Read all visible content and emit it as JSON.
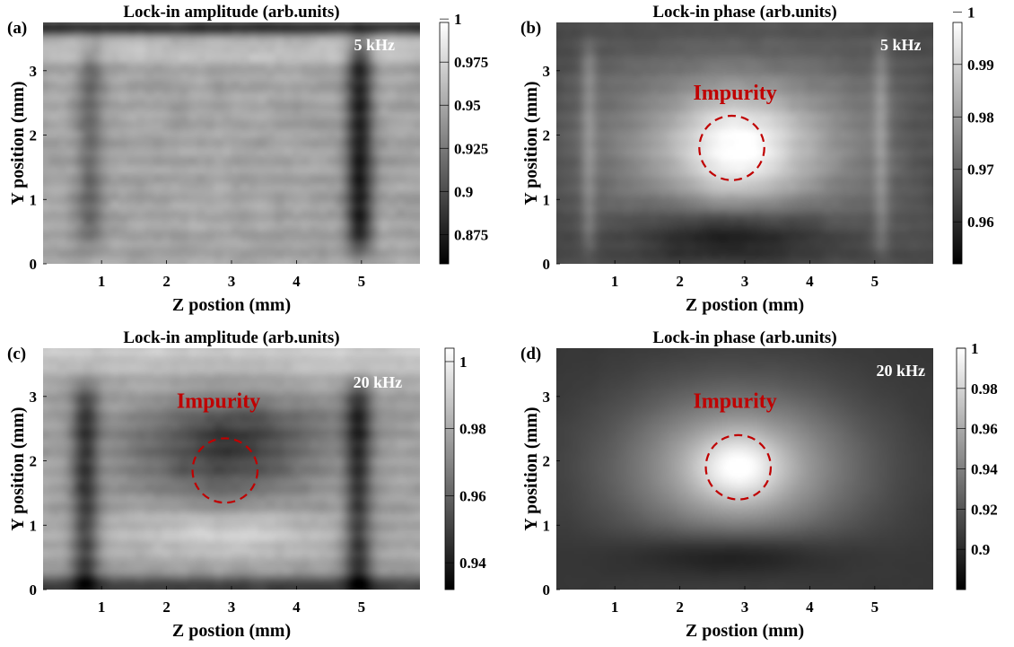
{
  "chart_data": [
    {
      "panel": "(a)",
      "type": "heatmap",
      "title": "Lock-in amplitude (arb.units)",
      "xlabel": "Z postion (mm)",
      "ylabel": "Y position (mm)",
      "xlim": [
        0.1,
        5.9
      ],
      "ylim": [
        0,
        3.75
      ],
      "xticks": [
        1,
        2,
        3,
        4,
        5
      ],
      "yticks": [
        0,
        1,
        2,
        3
      ],
      "colormap": "gray",
      "clim": [
        0.858,
        0.998
      ],
      "colorbar_ticks": [
        "0.875",
        "0.9",
        "0.925",
        "0.95",
        "0.975",
        "1"
      ],
      "colorbar_values": [
        0.875,
        0.9,
        0.925,
        0.95,
        0.975,
        1
      ],
      "annotations": [
        {
          "text": "5 kHz",
          "x": 5.2,
          "y": 3.32,
          "color": "#ffffff"
        }
      ],
      "impurity": null,
      "field": {
        "base": 0.948,
        "features": [
          {
            "kind": "vband",
            "x0": 0.82,
            "sx": 0.15,
            "y0": 0.35,
            "y1": 3.35,
            "amp": -0.032
          },
          {
            "kind": "vband",
            "x0": 4.97,
            "sx": 0.15,
            "y0": 0.25,
            "y1": 3.4,
            "amp": -0.07
          },
          {
            "kind": "hband",
            "y0": 3.68,
            "sy": 0.08,
            "amp": -0.06
          },
          {
            "kind": "hband",
            "y0": 3.3,
            "sy": 0.12,
            "amp": 0.018
          }
        ],
        "noise": 0.01,
        "stripes": 0.005
      }
    },
    {
      "panel": "(b)",
      "type": "heatmap",
      "title": "Lock-in phase (arb.units)",
      "xlabel": "Z postion (mm)",
      "ylabel": "Y position (mm)",
      "xlim": [
        0.1,
        5.9
      ],
      "ylim": [
        0,
        3.75
      ],
      "xticks": [
        1,
        2,
        3,
        4,
        5
      ],
      "yticks": [
        0,
        1,
        2,
        3
      ],
      "colormap": "gray",
      "clim": [
        0.952,
        0.998
      ],
      "colorbar_ticks": [
        "0.96",
        "0.97",
        "0.98",
        "0.99",
        "1"
      ],
      "colorbar_values": [
        0.96,
        0.97,
        0.98,
        0.99,
        1
      ],
      "annotations": [
        {
          "text": "5 kHz",
          "x": 5.4,
          "y": 3.32,
          "color": "#ffffff"
        },
        {
          "text": "Impurity",
          "x": 2.85,
          "y": 2.55,
          "color": "#c00000"
        }
      ],
      "impurity": {
        "x": 2.8,
        "y": 1.8,
        "r": 0.5
      },
      "field": {
        "base": 0.965,
        "features": [
          {
            "kind": "rect",
            "x0": 0.55,
            "x1": 5.3,
            "y0": 0.8,
            "y1": 3.05,
            "s": 0.35,
            "amp": 0.012
          },
          {
            "kind": "blob",
            "x0": 2.9,
            "y0": 1.8,
            "sx": 0.75,
            "sy": 0.62,
            "amp": 0.023
          },
          {
            "kind": "blob",
            "x0": 2.8,
            "y0": 0.45,
            "sx": 1.0,
            "sy": 0.3,
            "amp": -0.012
          },
          {
            "kind": "vband",
            "x0": 0.6,
            "sx": 0.09,
            "y0": 0.2,
            "y1": 3.4,
            "amp": 0.007
          },
          {
            "kind": "vband",
            "x0": 5.1,
            "sx": 0.09,
            "y0": 0.2,
            "y1": 3.4,
            "amp": 0.007
          }
        ],
        "noise": 0.0015,
        "stripes": 0.0008
      }
    },
    {
      "panel": "(c)",
      "type": "heatmap",
      "title": "Lock-in amplitude (arb.units)",
      "xlabel": "Z postion (mm)",
      "ylabel": "Y position (mm)",
      "xlim": [
        0.1,
        5.9
      ],
      "ylim": [
        0,
        3.75
      ],
      "xticks": [
        1,
        2,
        3,
        4,
        5
      ],
      "yticks": [
        0,
        1,
        2,
        3
      ],
      "colormap": "gray",
      "clim": [
        0.932,
        1.004
      ],
      "colorbar_ticks": [
        "0.94",
        "0.96",
        "0.98",
        "1"
      ],
      "colorbar_values": [
        0.94,
        0.96,
        0.98,
        1
      ],
      "annotations": [
        {
          "text": "20 kHz",
          "x": 5.25,
          "y": 3.14,
          "color": "#ffffff"
        },
        {
          "text": "Impurity",
          "x": 2.8,
          "y": 2.82,
          "color": "#c00000"
        }
      ],
      "impurity": {
        "x": 2.9,
        "y": 1.85,
        "r": 0.5
      },
      "field": {
        "base": 0.978,
        "features": [
          {
            "kind": "blob",
            "x0": 2.9,
            "y0": 2.05,
            "sx": 0.95,
            "sy": 0.6,
            "amp": -0.024
          },
          {
            "kind": "blob",
            "x0": 2.9,
            "y0": 0.9,
            "sx": 1.1,
            "sy": 0.28,
            "amp": 0.016
          },
          {
            "kind": "blob",
            "x0": 3.3,
            "y0": 2.5,
            "sx": 1.4,
            "sy": 0.3,
            "amp": -0.01
          },
          {
            "kind": "vband",
            "x0": 0.75,
            "sx": 0.15,
            "y0": 0.0,
            "y1": 3.15,
            "amp": -0.028
          },
          {
            "kind": "vband",
            "x0": 4.95,
            "sx": 0.15,
            "y0": 0.0,
            "y1": 3.15,
            "amp": -0.03
          },
          {
            "kind": "hband",
            "y0": 3.65,
            "sy": 0.25,
            "amp": 0.01
          },
          {
            "kind": "hband",
            "y0": 0.0,
            "sy": 0.15,
            "amp": -0.03
          }
        ],
        "noise": 0.004,
        "stripes": 0.0025
      }
    },
    {
      "panel": "(d)",
      "type": "heatmap",
      "title": "Lock-in phase (arb.units)",
      "xlabel": "Z postion (mm)",
      "ylabel": "Y position (mm)",
      "xlim": [
        0.1,
        5.9
      ],
      "ylim": [
        0,
        3.75
      ],
      "xticks": [
        1,
        2,
        3,
        4,
        5
      ],
      "yticks": [
        0,
        1,
        2,
        3
      ],
      "colormap": "gray",
      "clim": [
        0.88,
        1.0
      ],
      "colorbar_ticks": [
        "0.9",
        "0.92",
        "0.94",
        "0.96",
        "0.98",
        "1"
      ],
      "colorbar_values": [
        0.9,
        0.92,
        0.94,
        0.96,
        0.98,
        1
      ],
      "annotations": [
        {
          "text": "20 kHz",
          "x": 5.4,
          "y": 3.32,
          "color": "#ffffff"
        },
        {
          "text": "Impurity",
          "x": 2.85,
          "y": 2.82,
          "color": "#c00000"
        }
      ],
      "impurity": {
        "x": 2.9,
        "y": 1.9,
        "r": 0.5
      },
      "field": {
        "base": 0.905,
        "features": [
          {
            "kind": "blob",
            "x0": 2.9,
            "y0": 1.9,
            "sx": 1.3,
            "sy": 0.85,
            "amp": 0.063
          },
          {
            "kind": "blob",
            "x0": 2.9,
            "y0": 1.9,
            "sx": 0.45,
            "sy": 0.35,
            "amp": 0.035
          },
          {
            "kind": "blob",
            "x0": 2.8,
            "y0": 0.55,
            "sx": 1.1,
            "sy": 0.25,
            "amp": -0.025
          }
        ],
        "noise": 0.001,
        "stripes": 0.0
      }
    }
  ]
}
